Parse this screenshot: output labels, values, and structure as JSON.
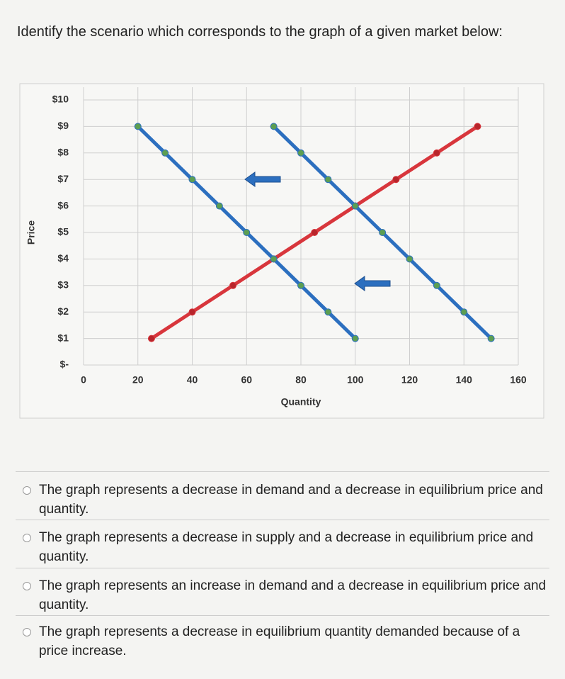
{
  "question": "Identify the scenario which corresponds to the graph of a given market below:",
  "chart_data": {
    "type": "line",
    "x_label": "Quantity",
    "y_label": "Price",
    "xlim": [
      0,
      160
    ],
    "xticks": [
      0,
      20,
      40,
      60,
      80,
      100,
      120,
      140,
      160
    ],
    "ylim": [
      0,
      10
    ],
    "yticks": [
      {
        "value": 0,
        "label": "$-"
      },
      {
        "value": 1,
        "label": "$1"
      },
      {
        "value": 2,
        "label": "$2"
      },
      {
        "value": 3,
        "label": "$3"
      },
      {
        "value": 4,
        "label": "$4"
      },
      {
        "value": 5,
        "label": "$5"
      },
      {
        "value": 6,
        "label": "$6"
      },
      {
        "value": 7,
        "label": "$7"
      },
      {
        "value": 8,
        "label": "$8"
      },
      {
        "value": 9,
        "label": "$9"
      },
      {
        "value": 10,
        "label": "$10"
      }
    ],
    "grid": true,
    "series": [
      {
        "color": "#d8363c",
        "marker_color": "#b8252b",
        "x": [
          25,
          40,
          55,
          70,
          85,
          100,
          115,
          130,
          145
        ],
        "values": [
          1,
          2,
          3,
          4,
          5,
          6,
          7,
          8,
          9
        ]
      },
      {
        "color": "#2c6fbf",
        "marker_color": "#5c9e52",
        "x": [
          70,
          80,
          90,
          100,
          110,
          120,
          130,
          140,
          150
        ],
        "values": [
          9,
          8,
          7,
          6,
          5,
          4,
          3,
          2,
          1
        ]
      },
      {
        "color": "#2c6fbf",
        "marker_color": "#5c9e52",
        "x": [
          20,
          30,
          40,
          50,
          60,
          70,
          80,
          90,
          100
        ],
        "values": [
          9,
          8,
          7,
          6,
          5,
          4,
          3,
          2,
          1
        ]
      }
    ]
  },
  "options": [
    "The graph represents a decrease in demand and a decrease in equilibrium price and quantity.",
    "The graph represents a decrease in supply and a decrease in equilibrium price and quantity.",
    "The graph represents an increase in demand and a decrease in equilibrium price and quantity.",
    "The graph represents a decrease in equilibrium quantity demanded because of a price increase."
  ]
}
